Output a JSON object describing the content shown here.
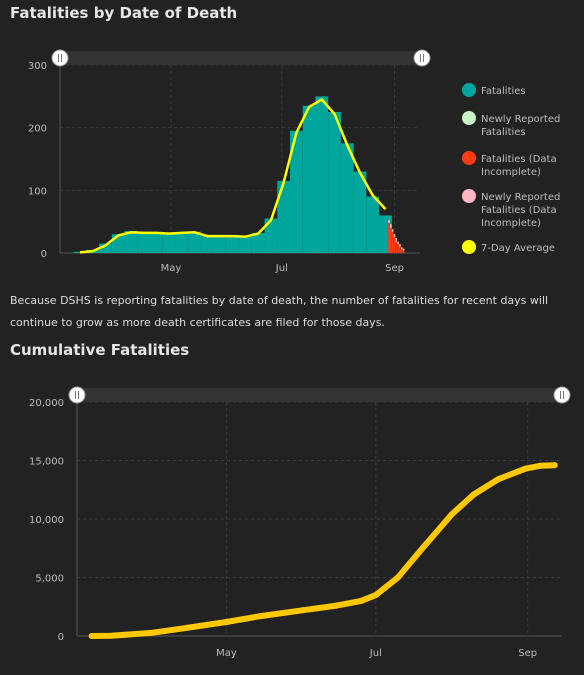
{
  "chart1_title": "Fatalities by Date of Death",
  "chart2_title": "Cumulative Fatalities",
  "note": "Because DSHS is reporting fatalities by date of death, the number of fatalities for recent days will continue to grow as more death certificates are filed for those days.",
  "colors": {
    "fatalities": "#00a59c",
    "newly_reported": "#c8f5c8",
    "fatalities_incomplete": "#ff3b14",
    "newly_incomplete": "#ffb6c1",
    "avg": "#ffff00",
    "cumulative": "#ffc800",
    "background": "#222222"
  },
  "chart_data": [
    {
      "type": "bar",
      "title": "Fatalities by Date of Death",
      "x_ticks": [
        "May",
        "Jul",
        "Sep"
      ],
      "y_ticks": [
        "0",
        "100",
        "200",
        "300"
      ],
      "ylim": [
        0,
        300
      ],
      "grid": true,
      "legend_position": "right",
      "legend": [
        "Fatalities",
        "Newly Reported Fatalities",
        "Fatalities (Data Incomplete)",
        "Newly Reported Fatalities (Data Incomplete)",
        "7-Day Average"
      ],
      "series": [
        {
          "name": "Fatalities",
          "x": [
            "2020-03-12",
            "2020-03-19",
            "2020-03-26",
            "2020-04-02",
            "2020-04-09",
            "2020-04-16",
            "2020-04-23",
            "2020-04-30",
            "2020-05-07",
            "2020-05-14",
            "2020-05-21",
            "2020-05-28",
            "2020-06-04",
            "2020-06-11",
            "2020-06-18",
            "2020-06-25",
            "2020-07-02",
            "2020-07-09",
            "2020-07-16",
            "2020-07-23",
            "2020-07-30",
            "2020-08-06",
            "2020-08-13",
            "2020-08-20",
            "2020-08-27"
          ],
          "values": [
            2,
            5,
            15,
            30,
            35,
            34,
            33,
            32,
            33,
            34,
            27,
            25,
            28,
            26,
            32,
            55,
            115,
            195,
            235,
            250,
            225,
            175,
            130,
            90,
            60
          ]
        },
        {
          "name": "Fatalities (Data Incomplete)",
          "x": [
            "2020-08-29",
            "2020-08-30",
            "2020-08-31",
            "2020-09-01",
            "2020-09-02",
            "2020-09-03",
            "2020-09-04",
            "2020-09-05",
            "2020-09-06"
          ],
          "values": [
            48,
            40,
            34,
            25,
            18,
            14,
            10,
            6,
            4
          ]
        },
        {
          "name": "Newly Reported Fatalities (Data Incomplete)",
          "x": [
            "2020-08-29",
            "2020-08-30",
            "2020-08-31",
            "2020-09-01",
            "2020-09-02",
            "2020-09-03",
            "2020-09-04",
            "2020-09-05",
            "2020-09-06"
          ],
          "values": [
            5,
            6,
            4,
            5,
            6,
            4,
            4,
            3,
            3
          ]
        },
        {
          "name": "7-Day Average",
          "x": [
            "2020-03-12",
            "2020-03-19",
            "2020-03-26",
            "2020-04-02",
            "2020-04-09",
            "2020-04-16",
            "2020-04-23",
            "2020-04-30",
            "2020-05-07",
            "2020-05-14",
            "2020-05-21",
            "2020-05-28",
            "2020-06-04",
            "2020-06-11",
            "2020-06-18",
            "2020-06-25",
            "2020-07-02",
            "2020-07-09",
            "2020-07-16",
            "2020-07-23",
            "2020-07-30",
            "2020-08-06",
            "2020-08-13",
            "2020-08-20",
            "2020-08-27"
          ],
          "values": [
            1,
            3,
            12,
            28,
            33,
            32,
            32,
            31,
            32,
            33,
            27,
            27,
            27,
            26,
            31,
            52,
            112,
            192,
            233,
            245,
            222,
            172,
            128,
            92,
            70
          ]
        }
      ]
    },
    {
      "type": "line",
      "title": "Cumulative Fatalities",
      "x_ticks": [
        "May",
        "Jul",
        "Sep"
      ],
      "y_ticks": [
        "0",
        "5,000",
        "10,000",
        "15,000",
        "20,000"
      ],
      "ylim": [
        0,
        20000
      ],
      "grid": true,
      "series": [
        {
          "name": "Cumulative Fatalities",
          "x": [
            "2020-03-07",
            "2020-03-15",
            "2020-04-01",
            "2020-04-15",
            "2020-05-01",
            "2020-05-15",
            "2020-06-01",
            "2020-06-15",
            "2020-06-25",
            "2020-07-01",
            "2020-07-10",
            "2020-07-20",
            "2020-08-01",
            "2020-08-10",
            "2020-08-20",
            "2020-08-31",
            "2020-09-06",
            "2020-09-12"
          ],
          "values": [
            0,
            20,
            280,
            700,
            1200,
            1700,
            2200,
            2600,
            3000,
            3500,
            5000,
            7500,
            10400,
            12100,
            13400,
            14300,
            14550,
            14600
          ]
        }
      ]
    }
  ]
}
